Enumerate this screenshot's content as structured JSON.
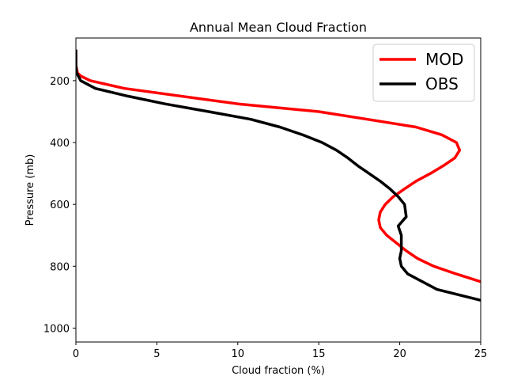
{
  "chart_data": {
    "type": "line",
    "title": "Annual Mean Cloud Fraction",
    "xlabel": "Cloud fraction (%)",
    "ylabel": "Pressure (mb)",
    "xlim": [
      0,
      25
    ],
    "ylim": [
      1045,
      62
    ],
    "y_inverted": true,
    "grid": false,
    "legend_position": "top-right",
    "xticks": [
      "0",
      "5",
      "10",
      "15",
      "20",
      "25"
    ],
    "yticks": [
      "200",
      "400",
      "600",
      "800",
      "1000"
    ],
    "series": [
      {
        "name": "MOD",
        "color": "#ff0000",
        "x": [
          0.0,
          0.0,
          0.1,
          0.3,
          0.9,
          3.0,
          10.0,
          15.0,
          18.0,
          21.0,
          22.6,
          23.5,
          23.7,
          23.4,
          22.7,
          21.9,
          21.0,
          20.3,
          19.6,
          19.1,
          18.8,
          18.7,
          18.8,
          19.2,
          19.8,
          20.4,
          21.1,
          22.1,
          23.5,
          25.0
        ],
        "y": [
          100,
          150,
          175,
          185,
          200,
          225,
          275,
          300,
          325,
          350,
          375,
          400,
          425,
          450,
          475,
          500,
          525,
          550,
          575,
          600,
          625,
          650,
          675,
          700,
          725,
          750,
          775,
          800,
          825,
          850
        ]
      },
      {
        "name": "OBS",
        "color": "#000000",
        "x": [
          0.0,
          0.0,
          0.05,
          0.3,
          1.2,
          3.2,
          5.5,
          8.2,
          10.8,
          12.6,
          14.0,
          15.2,
          16.1,
          16.8,
          17.4,
          18.1,
          18.8,
          19.4,
          19.9,
          20.3,
          20.4,
          19.9,
          20.1,
          20.1,
          20.1,
          20.0,
          20.1,
          20.5,
          22.3,
          25.0
        ],
        "y": [
          100,
          150,
          175,
          200,
          225,
          250,
          275,
          300,
          325,
          350,
          375,
          400,
          425,
          450,
          475,
          500,
          525,
          550,
          575,
          600,
          640,
          670,
          700,
          725,
          750,
          775,
          800,
          825,
          875,
          910
        ]
      }
    ]
  }
}
